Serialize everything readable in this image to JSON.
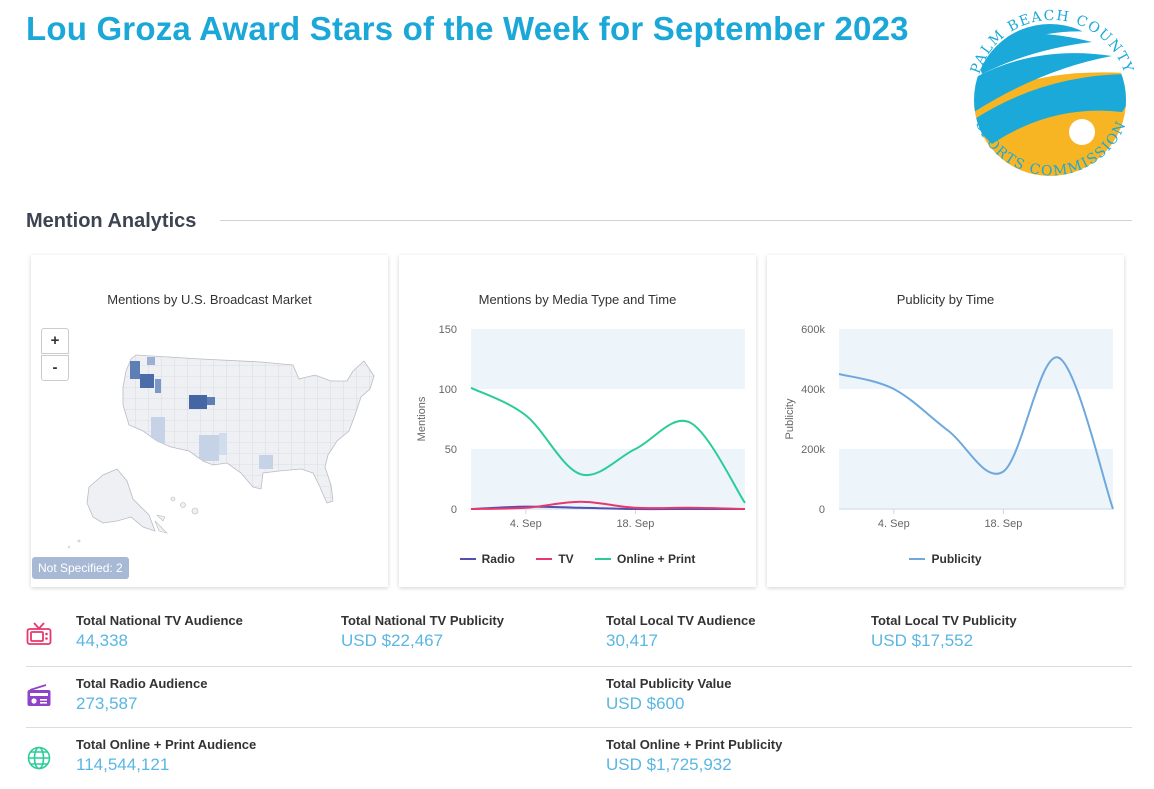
{
  "page": {
    "title": "Lou Groza Award Stars of the Week for September 2023",
    "logo": {
      "top_text": "PALM BEACH COUNTY",
      "bottom_text": "SPORTS COMMISSION",
      "colors": {
        "blue": "#1aa9d9",
        "gold": "#f7b523"
      }
    },
    "section_title": "Mention Analytics"
  },
  "map_card": {
    "title": "Mentions by U.S. Broadcast Market",
    "zoom_in_label": "+",
    "zoom_out_label": "-",
    "not_specified_label": "Not Specified: 2"
  },
  "chart_data": [
    {
      "type": "line",
      "title": "Mentions by Media Type and Time",
      "ylabel": "Mentions",
      "xlabel": "",
      "x_ticks": [
        "4. Sep",
        "18. Sep"
      ],
      "y_ticks": [
        "0",
        "50",
        "100",
        "150"
      ],
      "ylim": [
        0,
        150
      ],
      "x": [
        "28. Aug",
        "4. Sep",
        "11. Sep",
        "18. Sep",
        "25. Sep",
        "2. Oct"
      ],
      "grid": "alternating bands",
      "legend_position": "bottom",
      "series": [
        {
          "name": "Radio",
          "color": "#4f4fb4",
          "values": [
            0,
            2,
            1,
            0,
            0,
            0
          ]
        },
        {
          "name": "TV",
          "color": "#e8376d",
          "values": [
            0,
            1,
            6,
            1,
            1,
            0
          ]
        },
        {
          "name": "Online + Print",
          "color": "#2bcc98",
          "values": [
            101,
            78,
            29,
            50,
            72,
            5
          ]
        }
      ]
    },
    {
      "type": "line",
      "title": "Publicity by Time",
      "ylabel": "Publicity",
      "xlabel": "",
      "x_ticks": [
        "4. Sep",
        "18. Sep"
      ],
      "y_ticks": [
        "0",
        "200k",
        "400k",
        "600k"
      ],
      "ylim": [
        0,
        600000
      ],
      "x": [
        "28. Aug",
        "4. Sep",
        "11. Sep",
        "18. Sep",
        "25. Sep",
        "2. Oct"
      ],
      "grid": "alternating bands",
      "legend_position": "bottom",
      "series": [
        {
          "name": "Publicity",
          "color": "#6fa8dc",
          "values": [
            450000,
            400000,
            260000,
            125000,
            505000,
            0
          ]
        }
      ]
    }
  ],
  "stats": {
    "tv_icon_color": "#e8376d",
    "radio_icon_color": "#8e44c9",
    "web_icon_color": "#2bcc98",
    "national_tv_audience": {
      "label": "Total National TV Audience",
      "value": "44,338"
    },
    "national_tv_publicity": {
      "label": "Total National TV Publicity",
      "value": "USD $22,467"
    },
    "local_tv_audience": {
      "label": "Total Local TV Audience",
      "value": "30,417"
    },
    "local_tv_publicity": {
      "label": "Total Local TV Publicity",
      "value": "USD $17,552"
    },
    "radio_audience": {
      "label": "Total Radio Audience",
      "value": "273,587"
    },
    "publicity_value": {
      "label": "Total Publicity Value",
      "value": "USD $600"
    },
    "online_print_audience": {
      "label": "Total Online + Print Audience",
      "value": "114,544,121"
    },
    "online_print_publicity": {
      "label": "Total Online + Print Publicity",
      "value": "USD $1,725,932"
    }
  }
}
